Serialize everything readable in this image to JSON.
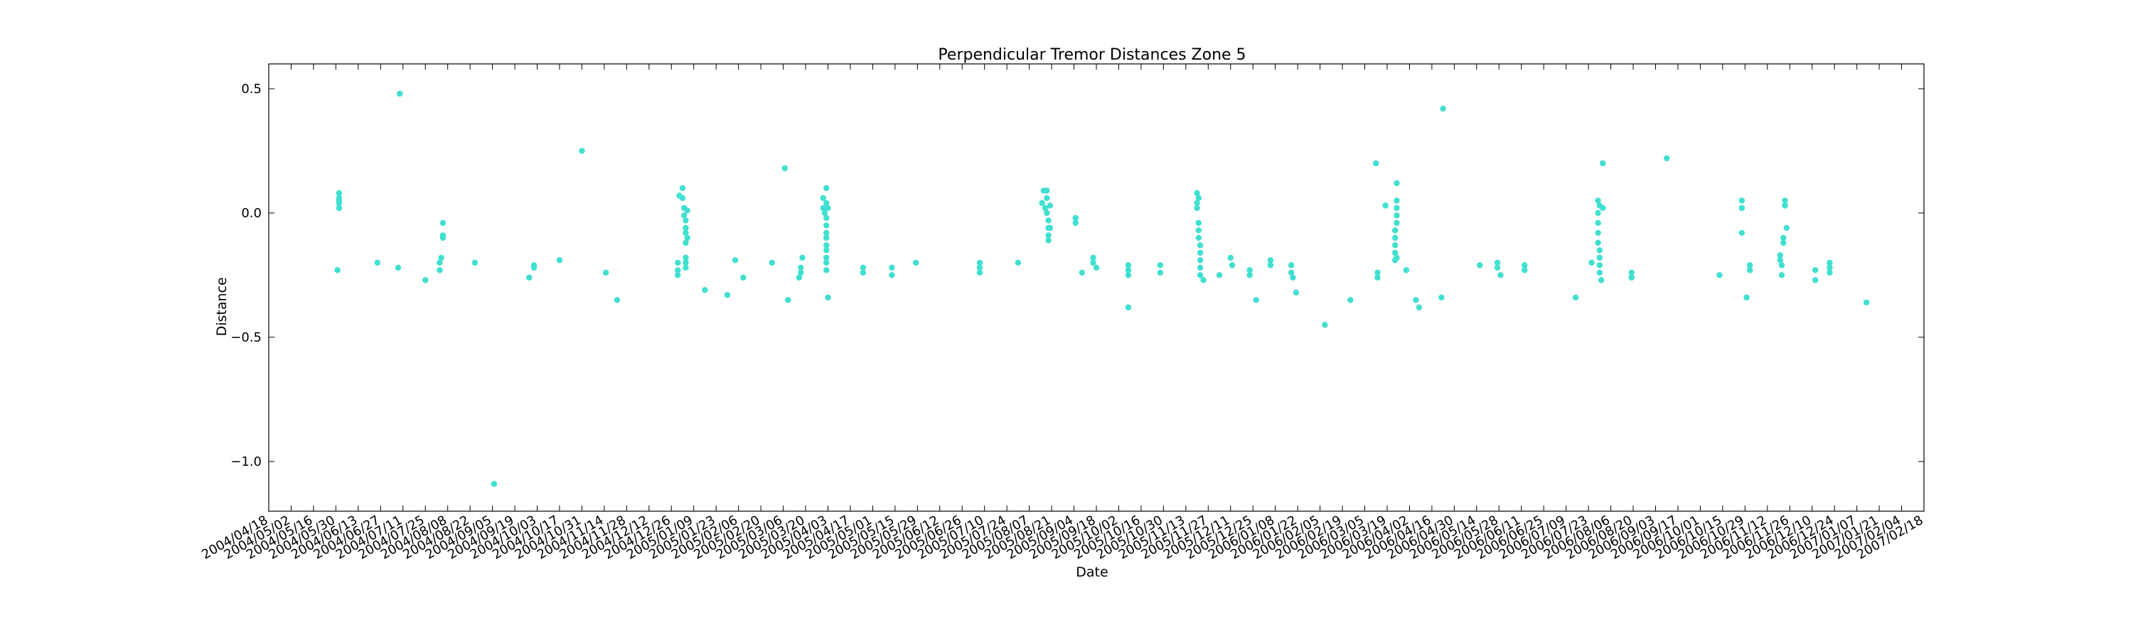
{
  "chart_data": {
    "type": "scatter",
    "title": "Perpendicular Tremor Distances Zone 5",
    "xlabel": "Date",
    "ylabel": "Distance",
    "xlim": [
      "2004-04-18",
      "2007-02-18"
    ],
    "ylim": [
      -1.2,
      0.6
    ],
    "y_ticks": [
      -1.0,
      -0.5,
      0.0,
      0.5
    ],
    "y_tick_labels": [
      "−1.0",
      "−0.5",
      "0.0",
      "0.5"
    ],
    "x_tick_labels": [
      "2004/04/18",
      "2004/05/02",
      "2004/05/16",
      "2004/05/30",
      "2004/06/13",
      "2004/06/27",
      "2004/07/11",
      "2004/07/25",
      "2004/08/08",
      "2004/08/22",
      "2004/09/05",
      "2004/09/19",
      "2004/10/03",
      "2004/10/17",
      "2004/10/31",
      "2004/11/14",
      "2004/11/28",
      "2004/12/12",
      "2004/12/26",
      "2005/01/09",
      "2005/01/23",
      "2005/02/06",
      "2005/02/20",
      "2005/03/06",
      "2005/03/20",
      "2005/04/03",
      "2005/04/17",
      "2005/05/01",
      "2005/05/15",
      "2005/05/29",
      "2005/06/12",
      "2005/06/26",
      "2005/07/10",
      "2005/07/24",
      "2005/08/07",
      "2005/08/21",
      "2005/09/04",
      "2005/09/18",
      "2005/10/02",
      "2005/10/16",
      "2005/10/30",
      "2005/11/13",
      "2005/11/27",
      "2005/12/11",
      "2005/12/25",
      "2006/01/08",
      "2006/01/22",
      "2006/02/05",
      "2006/02/19",
      "2006/03/05",
      "2006/03/19",
      "2006/04/02",
      "2006/04/16",
      "2006/04/30",
      "2006/05/14",
      "2006/05/28",
      "2006/06/11",
      "2006/06/25",
      "2006/07/09",
      "2006/07/23",
      "2006/08/06",
      "2006/08/20",
      "2006/09/03",
      "2006/09/17",
      "2006/10/01",
      "2006/10/15",
      "2006/10/29",
      "2006/11/12",
      "2006/11/26",
      "2006/12/10",
      "2006/12/24",
      "2007/01/07",
      "2007/01/21",
      "2007/02/04",
      "2007/02/18"
    ],
    "grid": false,
    "marker_color": "#40e0d0",
    "series": [
      {
        "points": [
          [
            "2004-06-01",
            0.08
          ],
          [
            "2004-06-01",
            0.06
          ],
          [
            "2004-06-01",
            0.04
          ],
          [
            "2004-06-01",
            0.02
          ],
          [
            "2004-06-01",
            0.05
          ],
          [
            "2004-05-31",
            -0.23
          ],
          [
            "2004-06-25",
            -0.2
          ],
          [
            "2004-07-08",
            -0.22
          ],
          [
            "2004-07-09",
            0.48
          ],
          [
            "2004-07-25",
            -0.27
          ],
          [
            "2004-08-03",
            -0.23
          ],
          [
            "2004-08-03",
            -0.2
          ],
          [
            "2004-08-04",
            -0.18
          ],
          [
            "2004-08-05",
            -0.1
          ],
          [
            "2004-08-05",
            -0.04
          ],
          [
            "2004-08-05",
            -0.09
          ],
          [
            "2004-08-25",
            -0.2
          ],
          [
            "2004-09-06",
            -1.09
          ],
          [
            "2004-09-28",
            -0.26
          ],
          [
            "2004-10-01",
            -0.22
          ],
          [
            "2004-10-01",
            -0.21
          ],
          [
            "2004-10-17",
            -0.19
          ],
          [
            "2004-10-31",
            0.25
          ],
          [
            "2004-11-15",
            -0.24
          ],
          [
            "2004-11-22",
            -0.35
          ],
          [
            "2004-12-30",
            -0.23
          ],
          [
            "2004-12-30",
            -0.2
          ],
          [
            "2004-12-30",
            -0.25
          ],
          [
            "2004-12-31",
            0.07
          ],
          [
            "2005-01-02",
            0.1
          ],
          [
            "2005-01-02",
            0.06
          ],
          [
            "2005-01-03",
            0.02
          ],
          [
            "2005-01-03",
            -0.01
          ],
          [
            "2005-01-04",
            -0.03
          ],
          [
            "2005-01-04",
            -0.06
          ],
          [
            "2005-01-04",
            -0.08
          ],
          [
            "2005-01-04",
            -0.12
          ],
          [
            "2005-01-04",
            -0.18
          ],
          [
            "2005-01-04",
            -0.2
          ],
          [
            "2005-01-04",
            -0.22
          ],
          [
            "2005-01-05",
            0.01
          ],
          [
            "2005-01-05",
            -0.1
          ],
          [
            "2005-01-16",
            -0.31
          ],
          [
            "2005-01-30",
            -0.33
          ],
          [
            "2005-02-04",
            -0.19
          ],
          [
            "2005-02-09",
            -0.26
          ],
          [
            "2005-02-27",
            -0.2
          ],
          [
            "2005-03-07",
            0.18
          ],
          [
            "2005-03-09",
            -0.35
          ],
          [
            "2005-03-16",
            -0.26
          ],
          [
            "2005-03-17",
            -0.24
          ],
          [
            "2005-03-17",
            -0.22
          ],
          [
            "2005-03-18",
            -0.18
          ],
          [
            "2005-03-31",
            0.06
          ],
          [
            "2005-03-31",
            0.02
          ],
          [
            "2005-04-01",
            0.0
          ],
          [
            "2005-04-02",
            0.04
          ],
          [
            "2005-04-02",
            0.1
          ],
          [
            "2005-04-02",
            -0.02
          ],
          [
            "2005-04-02",
            -0.05
          ],
          [
            "2005-04-02",
            -0.08
          ],
          [
            "2005-04-02",
            -0.1
          ],
          [
            "2005-04-02",
            -0.13
          ],
          [
            "2005-04-02",
            -0.15
          ],
          [
            "2005-04-02",
            -0.18
          ],
          [
            "2005-04-02",
            -0.2
          ],
          [
            "2005-04-02",
            -0.23
          ],
          [
            "2005-04-03",
            0.02
          ],
          [
            "2005-04-03",
            -0.34
          ],
          [
            "2005-04-25",
            -0.22
          ],
          [
            "2005-04-25",
            -0.24
          ],
          [
            "2005-05-13",
            -0.22
          ],
          [
            "2005-05-13",
            -0.25
          ],
          [
            "2005-05-28",
            -0.2
          ],
          [
            "2005-07-07",
            -0.2
          ],
          [
            "2005-07-07",
            -0.22
          ],
          [
            "2005-07-07",
            -0.24
          ],
          [
            "2005-07-31",
            -0.2
          ],
          [
            "2005-08-15",
            0.04
          ],
          [
            "2005-08-16",
            0.09
          ],
          [
            "2005-08-17",
            0.02
          ],
          [
            "2005-08-18",
            0.0
          ],
          [
            "2005-08-18",
            0.06
          ],
          [
            "2005-08-18",
            0.09
          ],
          [
            "2005-08-19",
            -0.03
          ],
          [
            "2005-08-19",
            -0.06
          ],
          [
            "2005-08-19",
            -0.09
          ],
          [
            "2005-08-19",
            -0.11
          ],
          [
            "2005-08-20",
            -0.06
          ],
          [
            "2005-08-20",
            0.03
          ],
          [
            "2005-09-05",
            -0.02
          ],
          [
            "2005-09-05",
            -0.04
          ],
          [
            "2005-09-09",
            -0.24
          ],
          [
            "2005-09-16",
            -0.18
          ],
          [
            "2005-09-16",
            -0.2
          ],
          [
            "2005-09-18",
            -0.22
          ],
          [
            "2005-10-08",
            -0.23
          ],
          [
            "2005-10-08",
            -0.25
          ],
          [
            "2005-10-08",
            -0.21
          ],
          [
            "2005-10-08",
            -0.38
          ],
          [
            "2005-10-28",
            -0.21
          ],
          [
            "2005-10-28",
            -0.24
          ],
          [
            "2005-11-20",
            0.08
          ],
          [
            "2005-11-20",
            0.04
          ],
          [
            "2005-11-20",
            0.02
          ],
          [
            "2005-11-21",
            0.06
          ],
          [
            "2005-11-21",
            -0.04
          ],
          [
            "2005-11-21",
            -0.07
          ],
          [
            "2005-11-21",
            -0.1
          ],
          [
            "2005-11-22",
            -0.13
          ],
          [
            "2005-11-22",
            -0.16
          ],
          [
            "2005-11-22",
            -0.19
          ],
          [
            "2005-11-22",
            -0.22
          ],
          [
            "2005-11-22",
            -0.25
          ],
          [
            "2005-11-24",
            -0.27
          ],
          [
            "2005-12-04",
            -0.25
          ],
          [
            "2005-12-11",
            -0.18
          ],
          [
            "2005-12-12",
            -0.21
          ],
          [
            "2005-12-23",
            -0.23
          ],
          [
            "2005-12-23",
            -0.25
          ],
          [
            "2005-12-27",
            -0.35
          ],
          [
            "2006-01-05",
            -0.19
          ],
          [
            "2006-01-05",
            -0.21
          ],
          [
            "2006-01-18",
            -0.21
          ],
          [
            "2006-01-18",
            -0.24
          ],
          [
            "2006-01-19",
            -0.26
          ],
          [
            "2006-01-21",
            -0.32
          ],
          [
            "2006-02-08",
            -0.45
          ],
          [
            "2006-02-24",
            -0.35
          ],
          [
            "2006-03-12",
            0.2
          ],
          [
            "2006-03-13",
            -0.24
          ],
          [
            "2006-03-13",
            -0.26
          ],
          [
            "2006-03-18",
            0.03
          ],
          [
            "2006-03-24",
            -0.19
          ],
          [
            "2006-03-24",
            -0.16
          ],
          [
            "2006-03-24",
            -0.13
          ],
          [
            "2006-03-24",
            -0.1
          ],
          [
            "2006-03-24",
            -0.07
          ],
          [
            "2006-03-25",
            -0.04
          ],
          [
            "2006-03-25",
            -0.01
          ],
          [
            "2006-03-25",
            0.02
          ],
          [
            "2006-03-25",
            0.05
          ],
          [
            "2006-03-25",
            0.12
          ],
          [
            "2006-03-25",
            -0.18
          ],
          [
            "2006-03-31",
            -0.23
          ],
          [
            "2006-04-06",
            -0.35
          ],
          [
            "2006-04-08",
            -0.38
          ],
          [
            "2006-04-22",
            -0.34
          ],
          [
            "2006-04-23",
            0.42
          ],
          [
            "2006-05-16",
            -0.21
          ],
          [
            "2006-05-27",
            -0.2
          ],
          [
            "2006-05-27",
            -0.22
          ],
          [
            "2006-05-29",
            -0.25
          ],
          [
            "2006-06-13",
            -0.21
          ],
          [
            "2006-06-13",
            -0.23
          ],
          [
            "2006-07-15",
            -0.34
          ],
          [
            "2006-07-25",
            -0.2
          ],
          [
            "2006-07-29",
            0.05
          ],
          [
            "2006-07-29",
            0.0
          ],
          [
            "2006-07-29",
            -0.04
          ],
          [
            "2006-07-29",
            -0.08
          ],
          [
            "2006-07-29",
            -0.12
          ],
          [
            "2006-07-30",
            -0.15
          ],
          [
            "2006-07-30",
            -0.18
          ],
          [
            "2006-07-30",
            -0.21
          ],
          [
            "2006-07-30",
            -0.24
          ],
          [
            "2006-07-30",
            0.03
          ],
          [
            "2006-07-31",
            -0.27
          ],
          [
            "2006-08-01",
            0.2
          ],
          [
            "2006-08-01",
            0.02
          ],
          [
            "2006-08-19",
            -0.24
          ],
          [
            "2006-08-19",
            -0.26
          ],
          [
            "2006-09-10",
            0.22
          ],
          [
            "2006-10-13",
            -0.25
          ],
          [
            "2006-10-27",
            0.05
          ],
          [
            "2006-10-27",
            0.02
          ],
          [
            "2006-10-27",
            -0.08
          ],
          [
            "2006-10-30",
            -0.34
          ],
          [
            "2006-11-01",
            -0.21
          ],
          [
            "2006-11-01",
            -0.23
          ],
          [
            "2006-11-20",
            -0.17
          ],
          [
            "2006-11-20",
            -0.19
          ],
          [
            "2006-11-21",
            -0.21
          ],
          [
            "2006-11-21",
            -0.25
          ],
          [
            "2006-11-22",
            -0.12
          ],
          [
            "2006-11-22",
            -0.1
          ],
          [
            "2006-11-23",
            0.05
          ],
          [
            "2006-11-23",
            0.03
          ],
          [
            "2006-11-24",
            -0.06
          ],
          [
            "2006-12-12",
            -0.23
          ],
          [
            "2006-12-12",
            -0.27
          ],
          [
            "2006-12-21",
            -0.2
          ],
          [
            "2006-12-21",
            -0.22
          ],
          [
            "2006-12-21",
            -0.24
          ],
          [
            "2007-01-13",
            -0.36
          ]
        ]
      }
    ]
  }
}
